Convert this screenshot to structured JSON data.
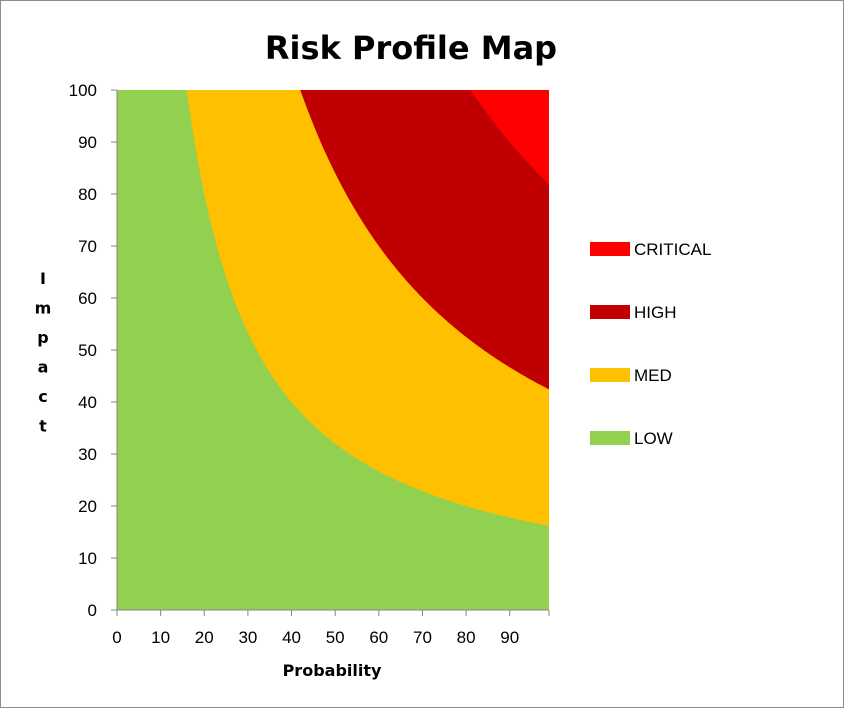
{
  "chart_data": {
    "type": "area",
    "title": "Risk Profile Map",
    "xlabel": "Probability",
    "ylabel": "Impact",
    "xlim": [
      0,
      99
    ],
    "ylim": [
      0,
      100
    ],
    "xticks": [
      0,
      10,
      20,
      30,
      40,
      50,
      60,
      70,
      80,
      90
    ],
    "yticks": [
      0,
      10,
      20,
      30,
      40,
      50,
      60,
      70,
      80,
      90,
      100
    ],
    "grid": false,
    "legend_position": "right",
    "boundary_formula": "Impact = threshold / Probability",
    "series": [
      {
        "name": "CRITICAL",
        "color": "#ff0000",
        "threshold": 8100
      },
      {
        "name": "HIGH",
        "color": "#c00000",
        "threshold": 4200
      },
      {
        "name": "MED",
        "color": "#ffc000",
        "threshold": 1600
      },
      {
        "name": "LOW",
        "color": "#92d050",
        "threshold": 0
      }
    ]
  }
}
